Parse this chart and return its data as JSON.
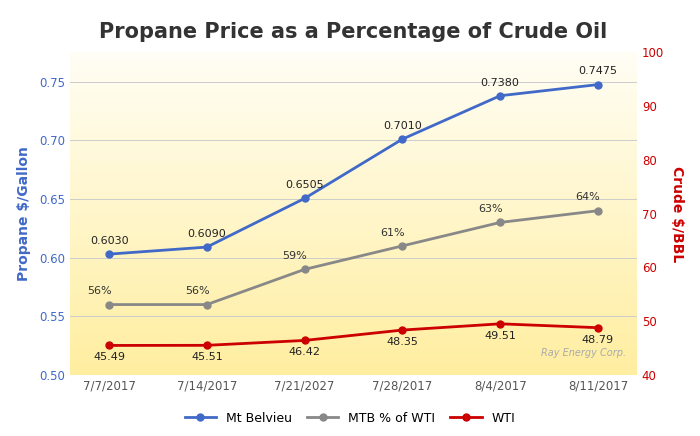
{
  "title": "Propane Price as a Percentage of Crude Oil",
  "x_labels": [
    "7/7/2017",
    "7/14/2017",
    "7/21/2027",
    "7/28/2017",
    "8/4/2017",
    "8/11/2017"
  ],
  "x_values": [
    0,
    1,
    2,
    3,
    4,
    5
  ],
  "mt_belvieu": [
    0.603,
    0.609,
    0.6505,
    0.701,
    0.738,
    0.7475
  ],
  "mtb_pct_wti": [
    0.56,
    0.56,
    0.59,
    0.61,
    0.63,
    0.64
  ],
  "mtb_pct_labels": [
    "56%",
    "56%",
    "59%",
    "61%",
    "63%",
    "64%"
  ],
  "wti": [
    45.49,
    45.51,
    46.42,
    48.35,
    49.51,
    48.79
  ],
  "mt_belvieu_color": "#4169c8",
  "mtb_pct_color": "#888888",
  "wti_color": "#cc0000",
  "ylabel_left": "Propane $/Gallon",
  "ylabel_right": "Crude $/BBL",
  "ylim_left": [
    0.5,
    0.775
  ],
  "ylim_right": [
    40,
    100
  ],
  "fig_bg": "#ffffff",
  "plot_bg_bottom": "#ffeea0",
  "plot_bg_top": "#fffef5",
  "grid_color": "#cccccc",
  "title_fontsize": 15,
  "tick_fontsize": 8.5,
  "annotation_fontsize": 8,
  "watermark": "Ray Energy Corp.",
  "left_yticks": [
    0.5,
    0.55,
    0.6,
    0.65,
    0.7,
    0.75
  ],
  "right_yticks": [
    40,
    50,
    60,
    70,
    80,
    90,
    100
  ]
}
